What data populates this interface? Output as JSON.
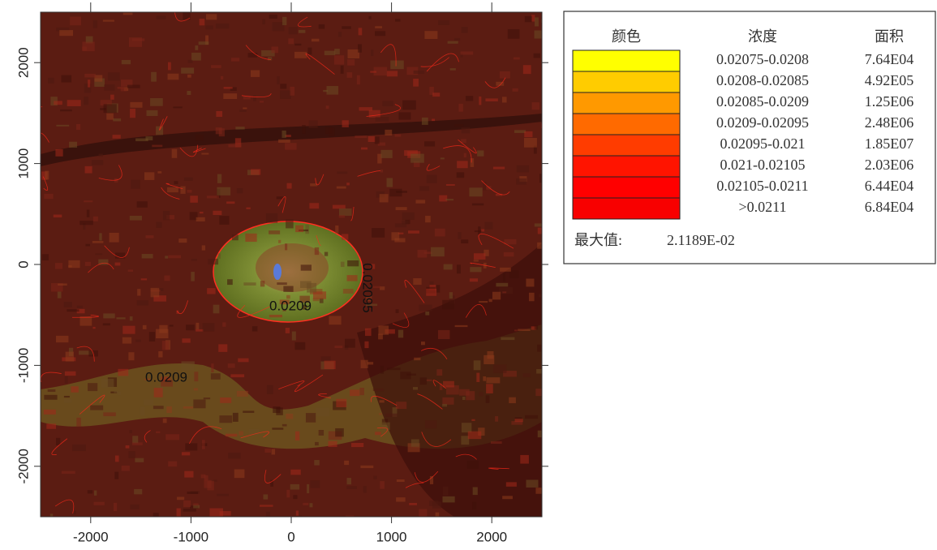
{
  "map": {
    "xlim": [
      -2500,
      2500
    ],
    "ylim": [
      -2500,
      2500
    ],
    "xticks": [
      -2000,
      -1000,
      0,
      1000,
      2000
    ],
    "yticks": [
      -2000,
      -1000,
      0,
      1000,
      2000
    ],
    "contour_labels": [
      "0.0209",
      "0.02095",
      "0.0209"
    ]
  },
  "legend": {
    "headers": [
      "颜色",
      "浓度",
      "面积"
    ],
    "rows": [
      {
        "color": "#ffff00",
        "range": "0.02075-0.0208",
        "area": "7.64E04"
      },
      {
        "color": "#ffcc00",
        "range": "0.0208-0.02085",
        "area": "4.92E05"
      },
      {
        "color": "#ff9900",
        "range": "0.02085-0.0209",
        "area": "1.25E06"
      },
      {
        "color": "#ff6a00",
        "range": "0.0209-0.02095",
        "area": "2.48E06"
      },
      {
        "color": "#ff3c00",
        "range": "0.02095-0.021",
        "area": "1.85E07"
      },
      {
        "color": "#ff1400",
        "range": "0.021-0.02105",
        "area": "2.03E06"
      },
      {
        "color": "#ff0000",
        "range": "0.02105-0.0211",
        "area": "6.44E04"
      },
      {
        "color": "#f80000",
        "range": ">0.0211",
        "area": "6.84E04"
      }
    ],
    "max_label": "最大值:",
    "max_value": "2.1189E-02"
  }
}
